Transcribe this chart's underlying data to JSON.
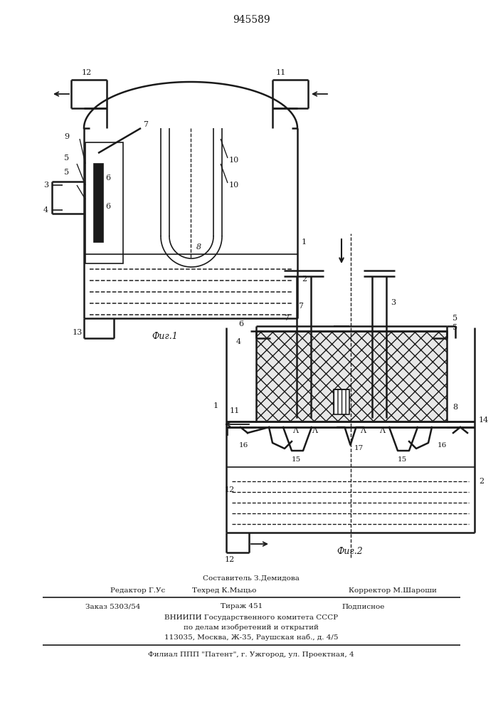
{
  "title": "945589",
  "fig1_label": "Фиг.1",
  "fig2_label": "Фиг.2",
  "background": "#ffffff",
  "line_color": "#1a1a1a",
  "footer": {
    "line1": "Составитель З.Демидова",
    "line2_left": "Редактор Г.Ус",
    "line2_mid": "Техред К.Мыцьо",
    "line2_right": "Корректор М.Шароши",
    "line3_left": "Заказ 5303/54",
    "line3_mid": "Тираж 451",
    "line3_right": "Подписное",
    "line4": "ВНИИПИ Государственного комитета СССР",
    "line5": "по делам изобретений и открытий",
    "line6": "113035, Москва, Ж-35, Раушская наб., д. 4/5",
    "line7": "Филиал ППП \"Патент\", г. Ужгород, ул. Проектная, 4"
  }
}
